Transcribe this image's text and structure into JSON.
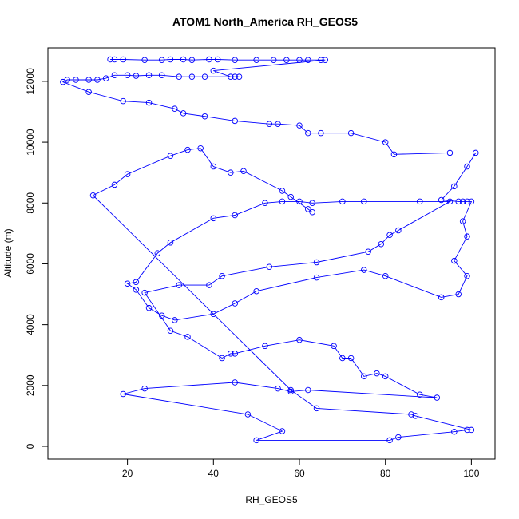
{
  "chart_data": {
    "type": "line",
    "title": "ATOM1 North_America RH_GEOS5",
    "x_label": "RH_GEOS5",
    "y_label": "Altitude (m)",
    "xlim": [
      1.5,
      105.5
    ],
    "ylim": [
      -420,
      13100
    ],
    "xticks": [
      20,
      40,
      60,
      80,
      100
    ],
    "yticks": [
      0,
      2000,
      4000,
      6000,
      8000,
      10000,
      12000
    ],
    "x": [
      16,
      17,
      19,
      24,
      28,
      30,
      33,
      35,
      39,
      41,
      45,
      50,
      54,
      57,
      60,
      62,
      65,
      66,
      40,
      44,
      45,
      46,
      38,
      35,
      32,
      28,
      25,
      22,
      20,
      17,
      15,
      13,
      11,
      8,
      6,
      5,
      11,
      19,
      25,
      31,
      33,
      38,
      45,
      53,
      55,
      60,
      62,
      65,
      72,
      80,
      82,
      95,
      101,
      99,
      96,
      93,
      97,
      98,
      99,
      100,
      98,
      99,
      96,
      99,
      97,
      93,
      80,
      75,
      64,
      50,
      45,
      40,
      31,
      28,
      25,
      22,
      20,
      22,
      27,
      30,
      40,
      45,
      52,
      56,
      60,
      63,
      70,
      75,
      88,
      95,
      83,
      81,
      79,
      76,
      64,
      53,
      42,
      39,
      32,
      24,
      30,
      34,
      42,
      44,
      45,
      52,
      60,
      68,
      70,
      72,
      75,
      78,
      80,
      88,
      92,
      62,
      58,
      55,
      45,
      24,
      19,
      48,
      56,
      50,
      81,
      83,
      96,
      99,
      100,
      87,
      86,
      64,
      58,
      12,
      17,
      20,
      30,
      34,
      37,
      40,
      44,
      47,
      56,
      58,
      62,
      63
    ],
    "series": [
      {
        "name": "RH_GEOS5",
        "color": "#0000ff",
        "values": [
          12720,
          12720,
          12720,
          12700,
          12700,
          12720,
          12720,
          12700,
          12720,
          12720,
          12700,
          12700,
          12700,
          12700,
          12700,
          12700,
          12700,
          12700,
          12350,
          12150,
          12150,
          12150,
          12150,
          12150,
          12150,
          12200,
          12200,
          12180,
          12200,
          12200,
          12100,
          12050,
          12050,
          12050,
          12050,
          11980,
          11650,
          11350,
          11300,
          11100,
          10950,
          10850,
          10700,
          10600,
          10600,
          10550,
          10300,
          10300,
          10300,
          10000,
          9600,
          9650,
          9650,
          9200,
          8550,
          8100,
          8050,
          8050,
          8050,
          8050,
          7400,
          6900,
          6100,
          5600,
          5000,
          4900,
          5600,
          5800,
          5550,
          5100,
          4700,
          4350,
          4150,
          4300,
          4550,
          5150,
          5350,
          5400,
          6350,
          6700,
          7500,
          7600,
          8000,
          8050,
          8050,
          8000,
          8050,
          8050,
          8050,
          8050,
          7100,
          6950,
          6650,
          6400,
          6050,
          5900,
          5600,
          5300,
          5300,
          5050,
          3800,
          3600,
          2900,
          3050,
          3050,
          3300,
          3500,
          3300,
          2900,
          2900,
          2300,
          2400,
          2300,
          1700,
          1600,
          1850,
          1800,
          1900,
          2100,
          1900,
          1720,
          1050,
          500,
          200,
          200,
          300,
          480,
          540,
          540,
          1000,
          1050,
          1250,
          1850,
          8250,
          8600,
          8950,
          9550,
          9750,
          9800,
          9200,
          9000,
          9050,
          8400,
          8200,
          7800,
          7700
        ]
      }
    ]
  }
}
